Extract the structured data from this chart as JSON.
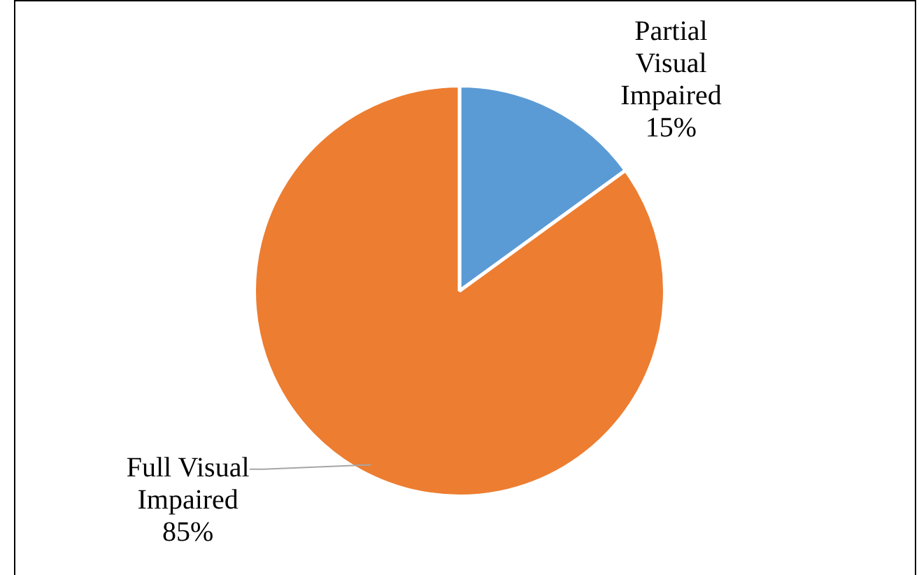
{
  "chart_data": {
    "type": "pie",
    "categories": [
      "Partial Visual Impaired",
      "Full Visual Impaired"
    ],
    "values": [
      15,
      85
    ],
    "colors": [
      "#5b9bd5",
      "#ed7d31"
    ],
    "value_labels": [
      "15%",
      "85%"
    ],
    "legend": false
  }
}
